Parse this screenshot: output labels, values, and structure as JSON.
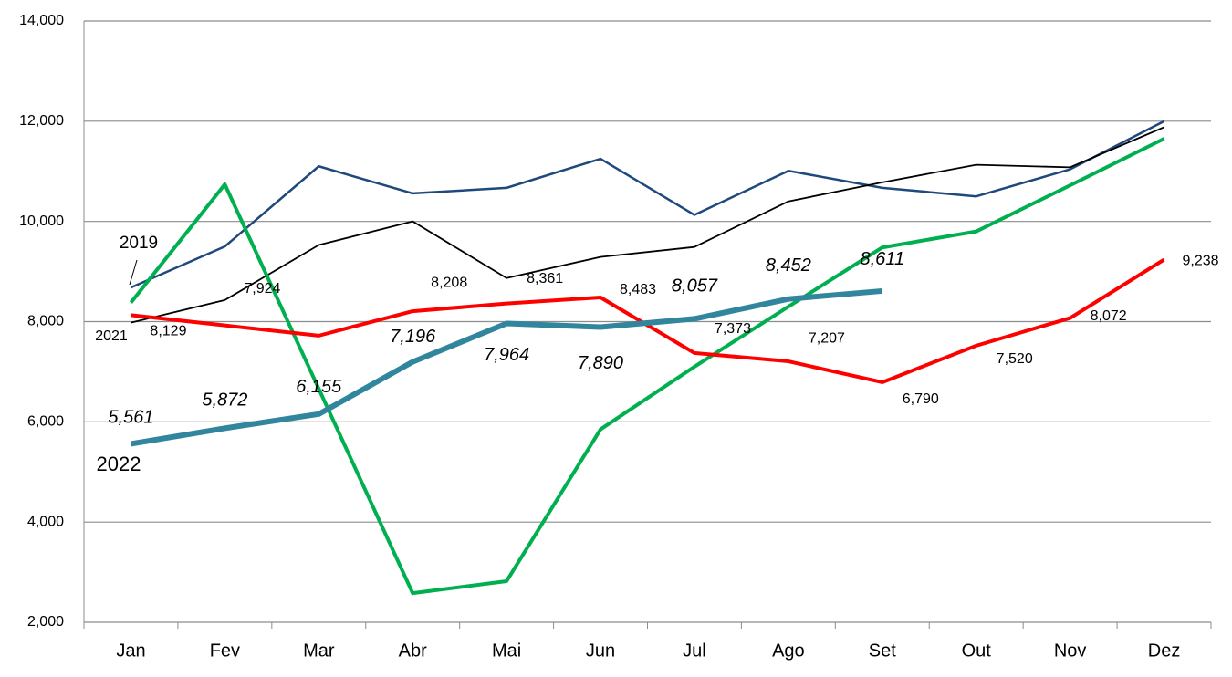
{
  "chart_data": {
    "type": "line",
    "categories": [
      "Jan",
      "Fev",
      "Mar",
      "Abr",
      "Mai",
      "Jun",
      "Jul",
      "Ago",
      "Set",
      "Out",
      "Nov",
      "Dez"
    ],
    "ylim": [
      2000,
      14000
    ],
    "yticks": [
      {
        "value": 2000,
        "label": "2,000"
      },
      {
        "value": 4000,
        "label": "4,000"
      },
      {
        "value": 6000,
        "label": "6,000"
      },
      {
        "value": 8000,
        "label": "8,000"
      },
      {
        "value": 10000,
        "label": "10,000"
      },
      {
        "value": 12000,
        "label": "12,000"
      },
      {
        "value": 14000,
        "label": "14,000"
      }
    ],
    "grid": true,
    "series": [
      {
        "name": "2019",
        "color": "#1f497d",
        "values": [
          8680,
          9500,
          11100,
          10560,
          10670,
          11250,
          10130,
          11010,
          10670,
          10500,
          11040,
          12000
        ]
      },
      {
        "color": "#000000",
        "values": [
          7980,
          8430,
          9530,
          10000,
          8870,
          9290,
          9490,
          10400,
          10780,
          11130,
          11080,
          11880
        ]
      },
      {
        "color": "#00b050",
        "values": [
          8380,
          10740,
          6660,
          2580,
          2820,
          5850,
          7100,
          8300,
          9480,
          9800,
          10720,
          11650
        ]
      },
      {
        "name": "2021",
        "color": "#ff0000",
        "values": [
          8129,
          7924,
          7720,
          8208,
          8361,
          8483,
          7373,
          7207,
          6790,
          7520,
          8072,
          9238
        ],
        "value_labels": [
          "8,129",
          "7,924",
          null,
          "8,208",
          "8,361",
          "8,483",
          "7,373",
          "7,207",
          "6,790",
          "7,520",
          "8,072",
          "9,238"
        ]
      },
      {
        "name": "2022",
        "color": "#31859c",
        "values": [
          5561,
          5872,
          6155,
          7196,
          7964,
          7890,
          8057,
          8452,
          8611,
          null,
          null,
          null
        ],
        "value_labels": [
          "5,561",
          "5,872",
          "6,155",
          "7,196",
          "7,964",
          "7,890",
          "8,057",
          "8,452",
          "8,611",
          null,
          null,
          null
        ]
      }
    ]
  }
}
